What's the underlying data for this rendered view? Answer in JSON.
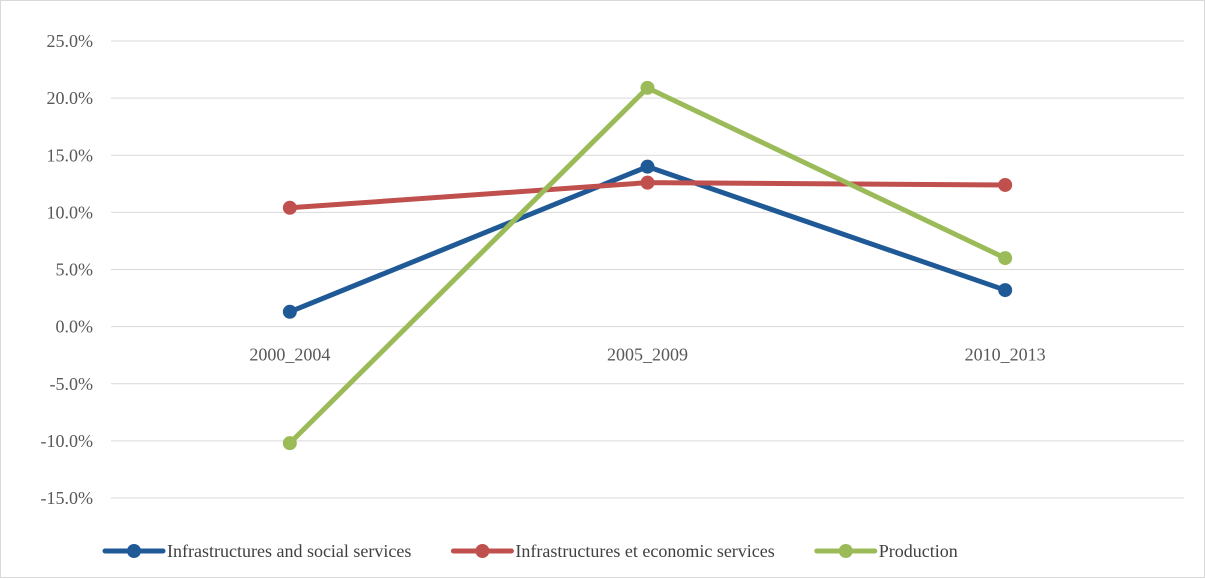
{
  "chart_data": {
    "type": "line",
    "categories": [
      "2000_2004",
      "2005_2009",
      "2010_2013"
    ],
    "series": [
      {
        "name": "Infrastructures and social services",
        "color": "#1f5a96",
        "values": [
          1.3,
          14.0,
          3.2
        ]
      },
      {
        "name": "Infrastructures et economic services",
        "color": "#c0504d",
        "values": [
          10.4,
          12.6,
          12.4
        ]
      },
      {
        "name": "Production",
        "color": "#9bbb59",
        "values": [
          -10.2,
          20.9,
          6.0
        ]
      }
    ],
    "ylim": [
      -15,
      25
    ],
    "y_ticks": [
      25,
      20,
      15,
      10,
      5,
      0,
      -5,
      -10,
      -15
    ],
    "y_tick_labels": [
      "25.0%",
      "20.0%",
      "15.0%",
      "10.0%",
      "5.0%",
      "0.0%",
      "-5.0%",
      "-10.0%",
      "-15.0%"
    ],
    "grid": true,
    "gridline_color": "#d9d9d9",
    "legend_position": "bottom",
    "title": "",
    "xlabel": "",
    "ylabel": ""
  }
}
